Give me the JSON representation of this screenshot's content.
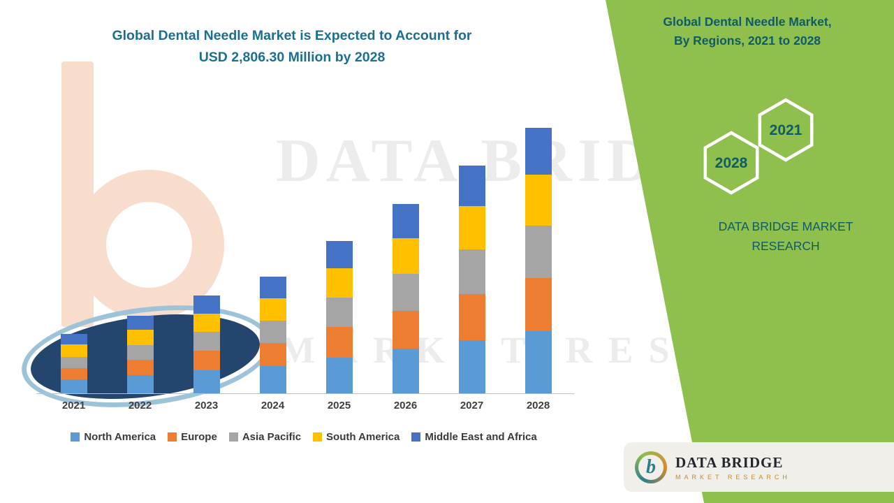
{
  "main": {
    "title_line1": "Global Dental Needle Market is Expected to Account for",
    "title_line2": "USD 2,806.30 Million by 2028",
    "title_color": "#1a7090"
  },
  "side_panel": {
    "title_line1": "Global Dental Needle Market,",
    "title_line2": "By Regions, 2021 to 2028",
    "hexagon_back_label": "2028",
    "hexagon_front_label": "2021",
    "brand_line1": "DATA BRIDGE MARKET",
    "brand_line2": "RESEARCH",
    "panel_color": "#8fbf4d",
    "text_color": "#0f5b66"
  },
  "watermark": {
    "line1": "DATA BRIDGE",
    "line2": "MARKET RESEARCH"
  },
  "logo_card": {
    "monogram": "b",
    "brand": "DATA BRIDGE",
    "sub": "MARKET RESEARCH"
  },
  "chart_data": {
    "type": "bar",
    "stacked": true,
    "title": "Global Dental Needle Market is Expected to Account for USD 2,806.30 Million by 2028",
    "unit": "USD Million",
    "categories": [
      "2021",
      "2022",
      "2023",
      "2024",
      "2025",
      "2026",
      "2027",
      "2028"
    ],
    "series": [
      {
        "name": "North America",
        "color": "#5b9bd5",
        "values": [
          150,
          195,
          245,
          290,
          380,
          470,
          565,
          660
        ]
      },
      {
        "name": "Europe",
        "color": "#ed7d31",
        "values": [
          120,
          160,
          205,
          245,
          320,
          400,
          485,
          560
        ]
      },
      {
        "name": "Asia Pacific",
        "color": "#a5a5a5",
        "values": [
          115,
          155,
          200,
          235,
          310,
          390,
          470,
          550
        ]
      },
      {
        "name": "South America",
        "color": "#ffc000",
        "values": [
          130,
          160,
          195,
          235,
          310,
          380,
          460,
          540
        ]
      },
      {
        "name": "Middle East and Africa",
        "color": "#4472c4",
        "values": [
          115,
          150,
          190,
          225,
          290,
          360,
          430,
          496.3
        ]
      }
    ],
    "totals_estimated": [
      630,
      820,
      1035,
      1230,
      1610,
      2000,
      2410,
      2806.3
    ],
    "ylim": [
      0,
      2806.3
    ],
    "grid": false,
    "legend_position": "bottom",
    "note": "2028 total stated in title as USD 2,806.30 Million; other values estimated from bar heights"
  }
}
